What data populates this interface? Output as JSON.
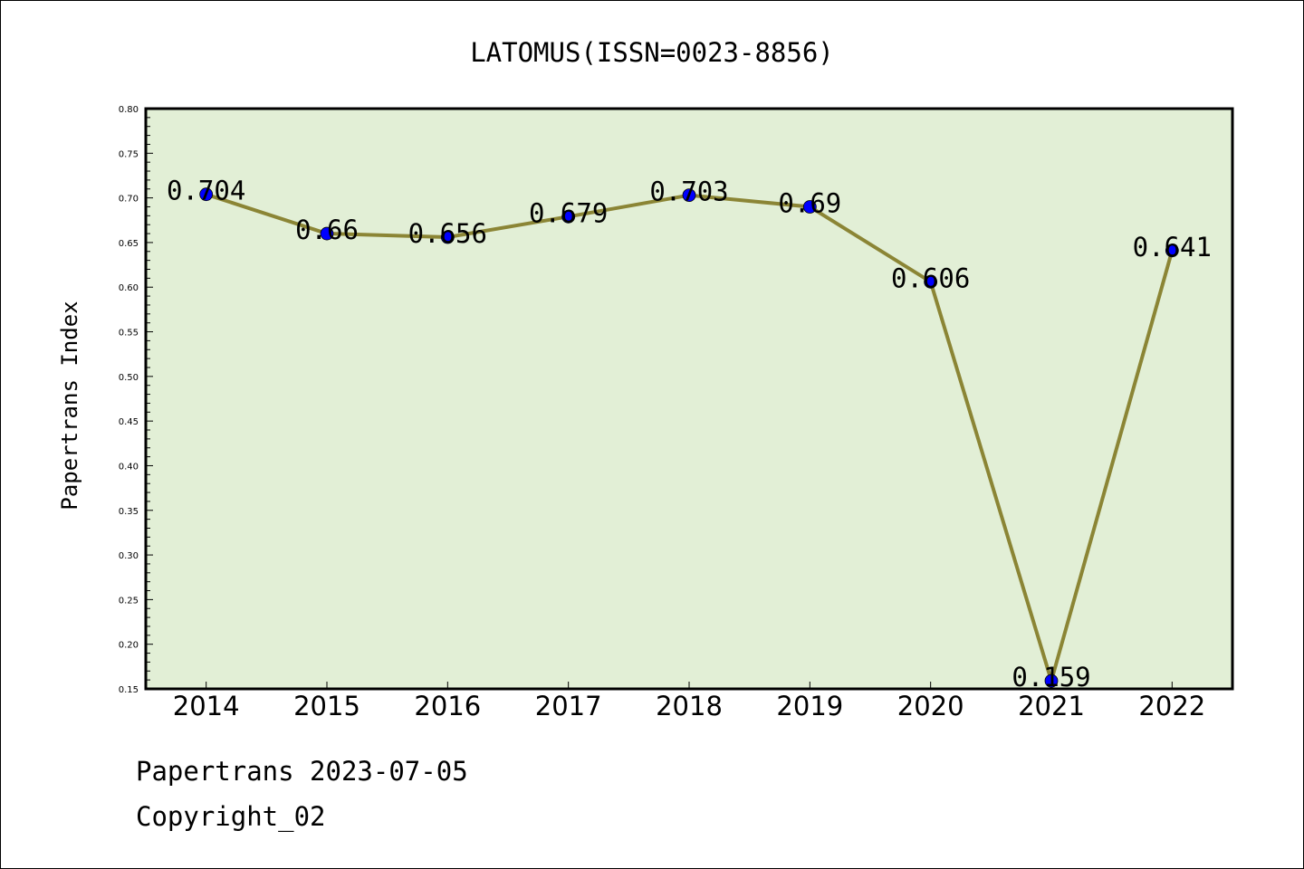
{
  "chart_data": {
    "type": "line",
    "title": "LATOMUS(ISSN=0023-8856)",
    "xlabel": "",
    "ylabel": "Papertrans Index",
    "categories": [
      "2014",
      "2015",
      "2016",
      "2017",
      "2018",
      "2019",
      "2020",
      "2021",
      "2022"
    ],
    "values": [
      0.704,
      0.66,
      0.656,
      0.679,
      0.703,
      0.69,
      0.606,
      0.159,
      0.641
    ],
    "data_labels": [
      "0.704",
      "0.66",
      "0.656",
      "0.679",
      "0.703",
      "0.69",
      "0.606",
      "0.159",
      "0.641"
    ],
    "ylim": [
      0.15,
      0.8
    ],
    "y_ticks": [
      "0.15",
      "0.20",
      "0.25",
      "0.30",
      "0.35",
      "0.40",
      "0.45",
      "0.50",
      "0.55",
      "0.60",
      "0.65",
      "0.70",
      "0.75",
      "0.80"
    ],
    "grid": false,
    "colors": {
      "plot_background": "#e2efd6",
      "line": "#8b8535",
      "marker": "#0000ff"
    }
  },
  "footer": {
    "source_line": "Papertrans 2023-07-05",
    "copyright_line": "Copyright_02"
  }
}
